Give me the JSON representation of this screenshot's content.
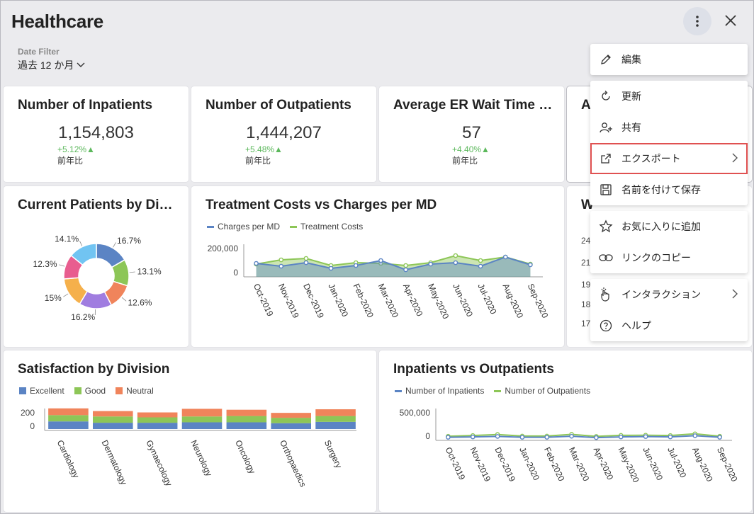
{
  "header": {
    "title": "Healthcare"
  },
  "date_filter": {
    "label": "Date Filter",
    "value": "過去 12 か月"
  },
  "kpis": [
    {
      "title": "Number of Inpatients",
      "value": "1,154,803",
      "delta": "+5.12%▲",
      "sub": "前年比"
    },
    {
      "title": "Number of Outpatients",
      "value": "1,444,207",
      "delta": "+5.48%▲",
      "sub": "前年比"
    },
    {
      "title": "Average ER Wait Time (...",
      "value": "57",
      "delta": "+4.40%▲",
      "sub": "前年比"
    },
    {
      "title": "A",
      "value": "",
      "delta": "",
      "sub": ""
    }
  ],
  "panels": {
    "donut_title": "Current Patients by Divi...",
    "treatment_title": "Treatment Costs vs Charges per MD",
    "partial_title": "W",
    "satisfaction_title": "Satisfaction by Division",
    "inout_title": "Inpatients vs Outpatients"
  },
  "partial_ticks": [
    "24",
    "21",
    "19",
    "18",
    "17"
  ],
  "menu": {
    "groups": [
      [
        {
          "label": "編集",
          "icon": "pencil-icon"
        }
      ],
      [
        {
          "label": "更新",
          "icon": "refresh-icon"
        },
        {
          "label": "共有",
          "icon": "share-user-icon"
        },
        {
          "label": "エクスポート",
          "icon": "export-icon",
          "submenu": true,
          "highlighted": true
        },
        {
          "label": "名前を付けて保存",
          "icon": "save-icon"
        }
      ],
      [
        {
          "label": "お気に入りに追加",
          "icon": "star-icon"
        },
        {
          "label": "リンクのコピー",
          "icon": "link-icon"
        }
      ],
      [
        {
          "label": "インタラクション",
          "icon": "interaction-hand-icon",
          "submenu": true
        },
        {
          "label": "ヘルプ",
          "icon": "help-icon"
        }
      ]
    ]
  },
  "colors": {
    "blue": "#5b84c4",
    "green": "#8dc657",
    "orange": "#f0845b",
    "accent_highlight": "#e05151"
  },
  "chart_data": [
    {
      "type": "pie",
      "title": "Current Patients by Divi...",
      "values": [
        16.7,
        13.1,
        12.6,
        16.2,
        15,
        12.3,
        14.1
      ],
      "labels": [
        "16.7%",
        "13.1%",
        "12.6%",
        "16.2%",
        "15%",
        "12.3%",
        "14.1%"
      ],
      "colors": [
        "#5b84c4",
        "#8dc657",
        "#f0845b",
        "#a07de0",
        "#f5b04b",
        "#e85d8f",
        "#71c4f2"
      ],
      "donut": true
    },
    {
      "type": "area",
      "title": "Treatment Costs vs Charges per MD",
      "categories": [
        "Oct-2019",
        "Nov-2019",
        "Dec-2019",
        "Jan-2020",
        "Feb-2020",
        "Mar-2020",
        "Apr-2020",
        "May-2020",
        "Jun-2020",
        "Jul-2020",
        "Aug-2020",
        "Sep-2020"
      ],
      "series": [
        {
          "name": "Charges per MD",
          "color": "#5b84c4",
          "values": [
            95000,
            75000,
            100000,
            60000,
            80000,
            115000,
            50000,
            90000,
            100000,
            75000,
            140000,
            85000
          ]
        },
        {
          "name": "Treatment Costs",
          "color": "#8dc657",
          "values": [
            90000,
            120000,
            130000,
            80000,
            100000,
            95000,
            80000,
            100000,
            150000,
            115000,
            140000,
            90000
          ]
        }
      ],
      "ytick_labels": [
        "200,000",
        "0"
      ],
      "ylim": [
        0,
        200000
      ]
    },
    {
      "type": "bar",
      "title": "Satisfaction by Division",
      "categories": [
        "Cardiology",
        "Dermatology",
        "Gynaecology",
        "Neurology",
        "Oncology",
        "Orthopaedics",
        "Surgery"
      ],
      "series": [
        {
          "name": "Excellent",
          "color": "#5b84c4",
          "values": [
            85,
            70,
            70,
            75,
            75,
            65,
            80
          ]
        },
        {
          "name": "Good",
          "color": "#8dc657",
          "values": [
            70,
            70,
            60,
            65,
            70,
            60,
            65
          ]
        },
        {
          "name": "Neutral",
          "color": "#f0845b",
          "values": [
            75,
            60,
            55,
            85,
            70,
            55,
            75
          ]
        }
      ],
      "stacked": true,
      "ytick_labels": [
        "200",
        "0"
      ],
      "ylim": [
        0,
        260
      ]
    },
    {
      "type": "line",
      "title": "Inpatients vs Outpatients",
      "categories": [
        "Oct-2019",
        "Nov-2019",
        "Dec-2019",
        "Jan-2020",
        "Feb-2020",
        "Mar-2020",
        "Apr-2020",
        "May-2020",
        "Jun-2020",
        "Jul-2020",
        "Aug-2020",
        "Sep-2020"
      ],
      "series": [
        {
          "name": "Number of Inpatients",
          "color": "#5b84c4",
          "values": [
            90000,
            100000,
            115000,
            90000,
            90000,
            120000,
            80000,
            100000,
            110000,
            100000,
            135000,
            90000
          ]
        },
        {
          "name": "Number of Outpatients",
          "color": "#8dc657",
          "values": [
            120000,
            140000,
            170000,
            125000,
            125000,
            175000,
            115000,
            145000,
            150000,
            140000,
            190000,
            120000
          ]
        }
      ],
      "ytick_labels": [
        "500,000",
        "0"
      ],
      "ylim": [
        0,
        800000
      ]
    }
  ]
}
